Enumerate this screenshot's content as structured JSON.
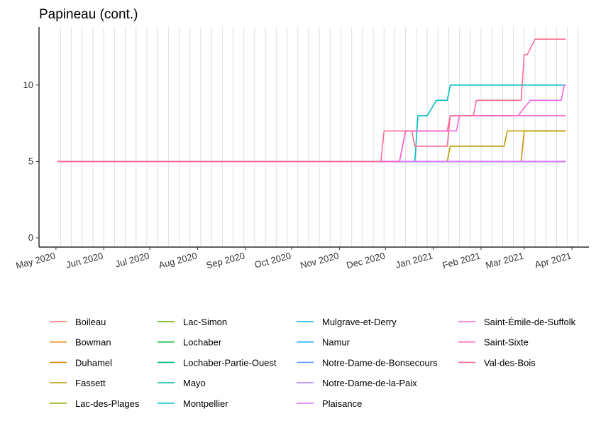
{
  "chart_data": {
    "type": "line",
    "title": "Papineau (cont.)",
    "xlabel": "",
    "ylabel": "",
    "x_ticks": [
      "May 2020",
      "Jun 2020",
      "Jul 2020",
      "Aug 2020",
      "Sep 2020",
      "Oct 2020",
      "Nov 2020",
      "Dec 2020",
      "Jan 2021",
      "Feb 2021",
      "Mar 2021",
      "Apr 2021"
    ],
    "x_range": [
      "2020-04-20",
      "2021-04-12"
    ],
    "y_ticks": [
      0,
      5,
      10
    ],
    "ylim": [
      -0.6,
      13.8
    ],
    "grid": "vertical weekly lines",
    "legend_position": "bottom",
    "series": [
      {
        "name": "Boileau",
        "color": "#F8766D",
        "points": [
          [
            "2020-05-02",
            5
          ],
          [
            "2021-03-28",
            5
          ]
        ]
      },
      {
        "name": "Bowman",
        "color": "#E7861B",
        "points": [
          [
            "2020-05-02",
            5
          ],
          [
            "2021-03-28",
            5
          ]
        ]
      },
      {
        "name": "Duhamel",
        "color": "#D39200",
        "points": [
          [
            "2020-05-02",
            5
          ],
          [
            "2021-02-27",
            5
          ],
          [
            "2021-03-01",
            7
          ],
          [
            "2021-03-28",
            7
          ]
        ]
      },
      {
        "name": "Fassett",
        "color": "#B79F00",
        "points": [
          [
            "2020-05-02",
            5
          ],
          [
            "2021-01-10",
            5
          ],
          [
            "2021-01-12",
            6
          ],
          [
            "2021-02-16",
            6
          ],
          [
            "2021-02-18",
            7
          ],
          [
            "2021-03-28",
            7
          ]
        ]
      },
      {
        "name": "Lac-des-Plages",
        "color": "#93AA00",
        "points": [
          [
            "2020-05-02",
            5
          ],
          [
            "2021-03-28",
            5
          ]
        ]
      },
      {
        "name": "Lac-Simon",
        "color": "#5EB300",
        "points": [
          [
            "2020-05-02",
            5
          ],
          [
            "2021-03-28",
            5
          ]
        ]
      },
      {
        "name": "Lochaber",
        "color": "#00BA38",
        "points": [
          [
            "2020-05-02",
            5
          ],
          [
            "2021-03-28",
            5
          ]
        ]
      },
      {
        "name": "Lochaber-Partie-Ouest",
        "color": "#00BF74",
        "points": [
          [
            "2020-05-02",
            5
          ],
          [
            "2021-03-28",
            5
          ]
        ]
      },
      {
        "name": "Mayo",
        "color": "#00C19F",
        "points": [
          [
            "2020-05-02",
            5
          ],
          [
            "2021-03-28",
            5
          ]
        ]
      },
      {
        "name": "Montpellier",
        "color": "#00BFC4",
        "points": [
          [
            "2020-05-02",
            5
          ],
          [
            "2020-12-20",
            5
          ],
          [
            "2020-12-22",
            8
          ],
          [
            "2020-12-28",
            8
          ],
          [
            "2021-01-03",
            9
          ],
          [
            "2021-01-10",
            9
          ],
          [
            "2021-01-12",
            10
          ],
          [
            "2021-03-28",
            10
          ]
        ]
      },
      {
        "name": "Mulgrave-et-Derry",
        "color": "#00B9E3",
        "points": [
          [
            "2020-05-02",
            5
          ],
          [
            "2021-03-28",
            5
          ]
        ]
      },
      {
        "name": "Namur",
        "color": "#00ADFA",
        "points": [
          [
            "2020-05-02",
            5
          ],
          [
            "2021-03-28",
            5
          ]
        ]
      },
      {
        "name": "Notre-Dame-de-Bonsecours",
        "color": "#619CFF",
        "points": [
          [
            "2020-05-02",
            5
          ],
          [
            "2021-03-28",
            5
          ]
        ]
      },
      {
        "name": "Notre-Dame-de-la-Paix",
        "color": "#AE87FF",
        "points": [
          [
            "2020-05-02",
            5
          ],
          [
            "2021-03-28",
            5
          ]
        ]
      },
      {
        "name": "Plaisance",
        "color": "#DB72FB",
        "points": [
          [
            "2020-05-02",
            5
          ],
          [
            "2021-03-28",
            5
          ]
        ]
      },
      {
        "name": "Saint-Émile-de-Suffolk",
        "color": "#F564E3",
        "points": [
          [
            "2020-05-02",
            5
          ],
          [
            "2020-12-10",
            5
          ],
          [
            "2020-12-14",
            7
          ],
          [
            "2021-01-16",
            7
          ],
          [
            "2021-01-18",
            8
          ],
          [
            "2021-02-25",
            8
          ],
          [
            "2021-03-05",
            9
          ],
          [
            "2021-03-25",
            9
          ],
          [
            "2021-03-27",
            10
          ],
          [
            "2021-03-28",
            10
          ]
        ]
      },
      {
        "name": "Saint-Sixte",
        "color": "#FF61C3",
        "points": [
          [
            "2020-05-02",
            5
          ],
          [
            "2020-12-10",
            5
          ],
          [
            "2020-12-14",
            7
          ],
          [
            "2021-01-10",
            7
          ],
          [
            "2021-01-12",
            8
          ],
          [
            "2021-03-28",
            8
          ]
        ]
      },
      {
        "name": "Val-des-Bois",
        "color": "#FF6C91",
        "points": [
          [
            "2020-05-02",
            5
          ],
          [
            "2020-11-28",
            5
          ],
          [
            "2020-11-30",
            7
          ],
          [
            "2020-12-18",
            7
          ],
          [
            "2020-12-20",
            6
          ],
          [
            "2021-01-10",
            6
          ],
          [
            "2021-01-12",
            8
          ],
          [
            "2021-01-27",
            8
          ],
          [
            "2021-01-29",
            9
          ],
          [
            "2021-02-27",
            9
          ],
          [
            "2021-03-01",
            12
          ],
          [
            "2021-03-03",
            12
          ],
          [
            "2021-03-08",
            13
          ],
          [
            "2021-03-28",
            13
          ]
        ]
      }
    ]
  }
}
